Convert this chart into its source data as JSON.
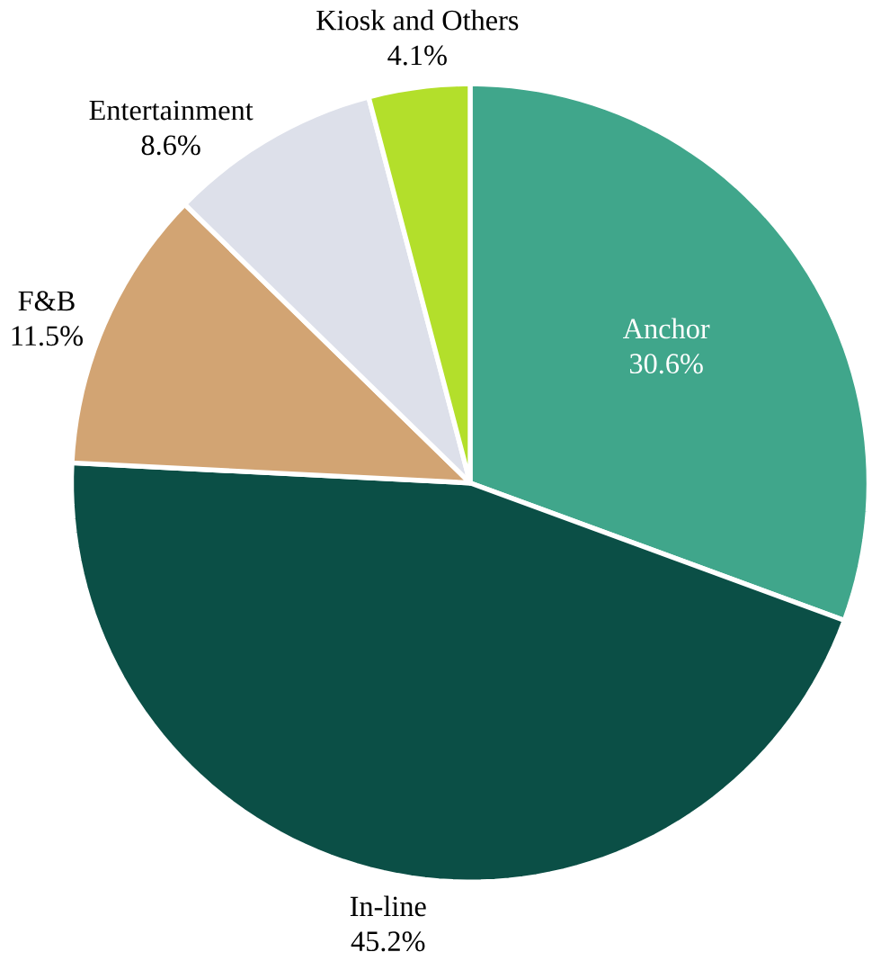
{
  "chart_data": {
    "type": "pie",
    "categories": [
      "Anchor",
      "In-line",
      "F&B",
      "Entertainment",
      "Kiosk and Others"
    ],
    "values": [
      30.6,
      45.2,
      11.5,
      8.6,
      4.1
    ],
    "value_labels": [
      "30.6%",
      "45.2%",
      "11.5%",
      "8.6%",
      "4.1%"
    ],
    "colors": [
      "#40a68b",
      "#0b4f46",
      "#d2a473",
      "#dde0ea",
      "#b3df2b"
    ]
  }
}
